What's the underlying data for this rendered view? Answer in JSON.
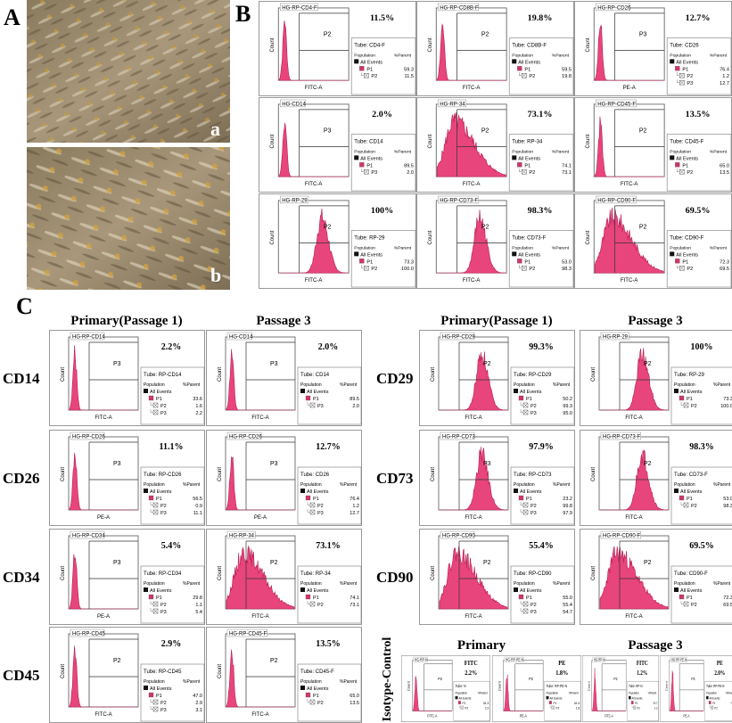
{
  "panel_labels": {
    "A": "A",
    "B": "B",
    "C": "C",
    "a": "a",
    "b": "b"
  },
  "common": {
    "count": "Count",
    "population": "Population",
    "parent": "%Parent",
    "all_events": "All Events"
  },
  "panel_b": [
    {
      "title": "HG-RP-CD4-F",
      "gate": "P2",
      "percent": "11.5%",
      "tube": "Tube: CD4-F",
      "axis": "FITC-A",
      "rows": [
        {
          "name": "P1",
          "value": "59.3"
        },
        {
          "name": "P2",
          "value": "11.5"
        }
      ]
    },
    {
      "title": "HG-RP-CD8B-F",
      "gate": "P2",
      "percent": "19.8%",
      "tube": "Tube: CD8B-F",
      "axis": "FITC-A",
      "rows": [
        {
          "name": "P1",
          "value": "59.5"
        },
        {
          "name": "P2",
          "value": "19.8"
        }
      ]
    },
    {
      "title": "HG-RP-CD26",
      "gate": "P3",
      "percent": "12.7%",
      "tube": "Tube: CD26",
      "axis": "PE-A",
      "rows": [
        {
          "name": "P1",
          "value": "76.4"
        },
        {
          "name": "P2",
          "value": "1.2"
        },
        {
          "name": "P3",
          "value": "12.7"
        }
      ]
    },
    {
      "title": "HG-CD14",
      "gate": "P3",
      "percent": "2.0%",
      "tube": "Tube: CD14",
      "axis": "FITC-A",
      "rows": [
        {
          "name": "P1",
          "value": "89.5"
        },
        {
          "name": "P3",
          "value": "2.0"
        }
      ]
    },
    {
      "title": "HG-RP-34",
      "gate": "P2",
      "percent": "73.1%",
      "tube": "Tube: RP-34",
      "axis": "FITC-A",
      "rows": [
        {
          "name": "P1",
          "value": "74.1"
        },
        {
          "name": "P2",
          "value": "73.1"
        }
      ]
    },
    {
      "title": "HG-RP-CD45-F",
      "gate": "P2",
      "percent": "13.5%",
      "tube": "Tube: CD45-F",
      "axis": "FITC-A",
      "rows": [
        {
          "name": "P1",
          "value": "65.0"
        },
        {
          "name": "P2",
          "value": "13.5"
        }
      ]
    },
    {
      "title": "HG-RP-29",
      "gate": "P2",
      "percent": "100%",
      "tube": "Tube: RP-29",
      "axis": "FITC-A",
      "rows": [
        {
          "name": "P1",
          "value": "73.3"
        },
        {
          "name": "P2",
          "value": "100.0"
        }
      ]
    },
    {
      "title": "HG-RP-CD73-F",
      "gate": "P2",
      "percent": "98.3%",
      "tube": "Tube: CD73-F",
      "axis": "FITC-A",
      "rows": [
        {
          "name": "P1",
          "value": "53.0"
        },
        {
          "name": "P2",
          "value": "98.3"
        }
      ]
    },
    {
      "title": "HG-RP-CD90-F",
      "gate": "P2",
      "percent": "69.5%",
      "tube": "Tube: CD90-F",
      "axis": "FITC-A",
      "rows": [
        {
          "name": "P1",
          "value": "72.3"
        },
        {
          "name": "P2",
          "value": "69.5"
        }
      ]
    }
  ],
  "panel_c": {
    "col_headers": [
      "Primary(Passage 1)",
      "Passage 3"
    ],
    "left": [
      {
        "marker": "CD14",
        "primary": {
          "title": "HG-RP-CD14",
          "gate": "P3",
          "percent": "2.2%",
          "tube": "Tube: RP-CD14",
          "axis": "FITC-A",
          "rows": [
            {
              "name": "P1",
              "value": "33.6"
            },
            {
              "name": "P2",
              "value": "1.6"
            },
            {
              "name": "P3",
              "value": "2.2"
            }
          ]
        },
        "passage3": {
          "title": "HG-CD14",
          "gate": "P3",
          "percent": "2.0%",
          "tube": "Tube: CD14",
          "axis": "FITC-A",
          "rows": [
            {
              "name": "P1",
              "value": "89.5"
            },
            {
              "name": "P3",
              "value": "2.0"
            }
          ]
        }
      },
      {
        "marker": "CD26",
        "primary": {
          "title": "HG-RP-CD26",
          "gate": "P3",
          "percent": "11.1%",
          "tube": "Tube: RP-CD26",
          "axis": "PE-A",
          "rows": [
            {
              "name": "P1",
              "value": "56.5"
            },
            {
              "name": "P2",
              "value": "0.9"
            },
            {
              "name": "P3",
              "value": "11.1"
            }
          ]
        },
        "passage3": {
          "title": "HG-RP-CD26",
          "gate": "P3",
          "percent": "12.7%",
          "tube": "Tube: CD26",
          "axis": "PE-A",
          "rows": [
            {
              "name": "P1",
              "value": "76.4"
            },
            {
              "name": "P2",
              "value": "1.2"
            },
            {
              "name": "P3",
              "value": "12.7"
            }
          ]
        }
      },
      {
        "marker": "CD34",
        "primary": {
          "title": "HG-RP-CD34",
          "gate": "P3",
          "percent": "5.4%",
          "tube": "Tube: RP-CD34",
          "axis": "PE-A",
          "rows": [
            {
              "name": "P1",
              "value": "29.8"
            },
            {
              "name": "P2",
              "value": "1.1"
            },
            {
              "name": "P3",
              "value": "5.4"
            }
          ]
        },
        "passage3": {
          "title": "HG-RP-34",
          "gate": "P2",
          "percent": "73.1%",
          "tube": "Tube: RP-34",
          "axis": "FITC-A",
          "rows": [
            {
              "name": "P1",
              "value": "74.1"
            },
            {
              "name": "P2",
              "value": "73.1"
            }
          ]
        }
      },
      {
        "marker": "CD45",
        "primary": {
          "title": "HG-RP-CD45",
          "gate": "P2",
          "percent": "2.9%",
          "tube": "Tube: RP-CD45",
          "axis": "FITC-A",
          "rows": [
            {
              "name": "P1",
              "value": "47.0"
            },
            {
              "name": "P2",
              "value": "2.9"
            },
            {
              "name": "P3",
              "value": "3.1"
            }
          ]
        },
        "passage3": {
          "title": "HG-RP-CD45-F",
          "gate": "P2",
          "percent": "13.5%",
          "tube": "Tube: CD45-F",
          "axis": "FITC-A",
          "rows": [
            {
              "name": "P1",
              "value": "65.0"
            },
            {
              "name": "P2",
              "value": "13.5"
            }
          ]
        }
      }
    ],
    "right": [
      {
        "marker": "CD29",
        "primary": {
          "title": "HG-RP-CD29",
          "gate": "P2",
          "percent": "99.3%",
          "tube": "Tube: RP-CD29",
          "axis": "FITC-A",
          "rows": [
            {
              "name": "P1",
              "value": "50.2"
            },
            {
              "name": "P2",
              "value": "99.3"
            },
            {
              "name": "P3",
              "value": "95.0"
            }
          ]
        },
        "passage3": {
          "title": "HG-RP-29",
          "gate": "P2",
          "percent": "100%",
          "tube": "Tube: RP-29",
          "axis": "FITC-A",
          "rows": [
            {
              "name": "P1",
              "value": "73.3"
            },
            {
              "name": "P2",
              "value": "100.0"
            }
          ]
        }
      },
      {
        "marker": "CD73",
        "primary": {
          "title": "HG-RP-CD73",
          "gate": "P3",
          "percent": "97.9%",
          "tube": "Tube: RP-CD73",
          "axis": "FITC-A",
          "rows": [
            {
              "name": "P1",
              "value": "23.2"
            },
            {
              "name": "P2",
              "value": "99.8"
            },
            {
              "name": "P3",
              "value": "97.9"
            }
          ]
        },
        "passage3": {
          "title": "HG-RP-CD73-F",
          "gate": "P2",
          "percent": "98.3%",
          "tube": "Tube: CD73-F",
          "axis": "FITC-A",
          "rows": [
            {
              "name": "P1",
              "value": "53.0"
            },
            {
              "name": "P2",
              "value": "98.3"
            }
          ]
        }
      },
      {
        "marker": "CD90",
        "primary": {
          "title": "HG-RP-CD90",
          "gate": "P2",
          "percent": "55.4%",
          "tube": "Tube: RP-CD90",
          "axis": "FITC-A",
          "rows": [
            {
              "name": "P1",
              "value": "55.0"
            },
            {
              "name": "P2",
              "value": "55.4"
            },
            {
              "name": "P3",
              "value": "54.7"
            }
          ]
        },
        "passage3": {
          "title": "HG-RP-CD90-F",
          "gate": "P2",
          "percent": "69.5%",
          "tube": "Tube: CD90-F",
          "axis": "FITC-A",
          "rows": [
            {
              "name": "P1",
              "value": "72.3"
            },
            {
              "name": "P2",
              "value": "69.5"
            }
          ]
        }
      }
    ]
  },
  "isotype": {
    "label": "Isotype-Control",
    "groups": [
      {
        "header": "Primary",
        "cells": [
          {
            "title": "HG-RP-N",
            "gate": "P2",
            "channel": "FITC",
            "percent": "2.2%",
            "tube": "Tube: N",
            "axis": "FITC-A",
            "rows": [
              {
                "name": "P1",
                "value": "81.3"
              },
              {
                "name": "P2",
                "value": "2.2"
              }
            ]
          },
          {
            "title": "HG-RP-PE-N",
            "gate": "P2",
            "channel": "PE",
            "percent": "1.8%",
            "tube": "Tube: RP-PE-N",
            "axis": "PE-A",
            "rows": [
              {
                "name": "P1",
                "value": "61.5"
              },
              {
                "name": "P2",
                "value": "1.8"
              }
            ]
          }
        ]
      },
      {
        "header": "Passage 3",
        "cells": [
          {
            "title": "HG-RP-N",
            "gate": "P2",
            "channel": "FITC",
            "percent": "1.2%",
            "tube": "Tube: RP-N",
            "axis": "FITC-A",
            "rows": [
              {
                "name": "P1",
                "value": "70.7"
              },
              {
                "name": "P2",
                "value": "1.2"
              }
            ]
          },
          {
            "title": "HG-RP-PE-N",
            "gate": "P2",
            "channel": "PE",
            "percent": "2.0%",
            "tube": "Tube: RP-PE-N",
            "axis": "PE-A",
            "rows": [
              {
                "name": "P1",
                "value": "72.3"
              },
              {
                "name": "P2",
                "value": "2.0"
              }
            ]
          }
        ]
      }
    ]
  }
}
